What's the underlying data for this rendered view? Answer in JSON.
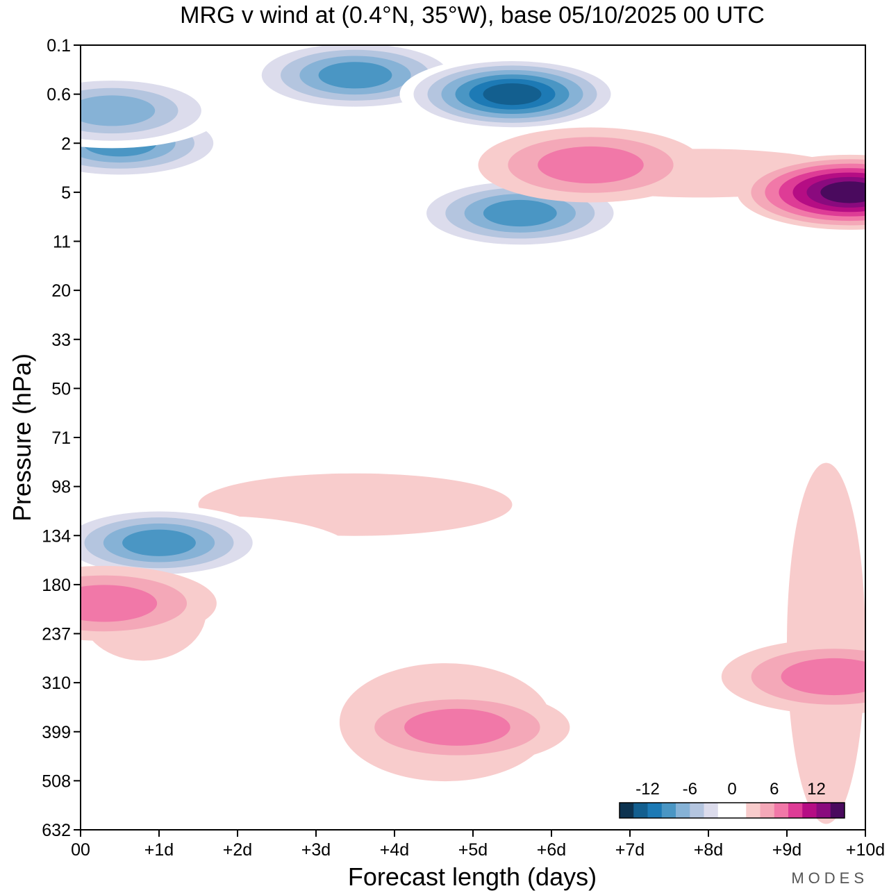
{
  "chart_data": {
    "type": "heatmap",
    "title": "MRG v wind at (0.4°N, 35°W),  base 05/10/2025  00 UTC",
    "xlabel": "Forecast length (days)",
    "ylabel": "Pressure (hPa)",
    "xlim": [
      0,
      10
    ],
    "y_scale": "log",
    "ylim": [
      632,
      0.1
    ],
    "x_ticks": [
      {
        "value": 0,
        "label": "00"
      },
      {
        "value": 1,
        "label": "+1d"
      },
      {
        "value": 2,
        "label": "+2d"
      },
      {
        "value": 3,
        "label": "+3d"
      },
      {
        "value": 4,
        "label": "+4d"
      },
      {
        "value": 5,
        "label": "+5d"
      },
      {
        "value": 6,
        "label": "+6d"
      },
      {
        "value": 7,
        "label": "+7d"
      },
      {
        "value": 8,
        "label": "+8d"
      },
      {
        "value": 9,
        "label": "+9d"
      },
      {
        "value": 10,
        "label": "+10d"
      }
    ],
    "y_ticks": [
      "0.1",
      "0.6",
      "2",
      "5",
      "11",
      "20",
      "33",
      "50",
      "71",
      "98",
      "134",
      "180",
      "237",
      "310",
      "399",
      "508",
      "632"
    ],
    "colorbar": {
      "labels": [
        {
          "value": -12,
          "text": "-12"
        },
        {
          "value": -6,
          "text": "-6"
        },
        {
          "value": 0,
          "text": "0"
        },
        {
          "value": 6,
          "text": "6"
        },
        {
          "value": 12,
          "text": "12"
        }
      ],
      "colors": [
        "#0d3350",
        "#135f8f",
        "#1d7ab5",
        "#4a96c4",
        "#86b2d6",
        "#b4c5df",
        "#dcdcec",
        "#ffffff",
        "#ffffff",
        "#f8cccc",
        "#f4a8b8",
        "#f178a8",
        "#de3c96",
        "#b50d84",
        "#8a0a7e",
        "#4a0a5e"
      ]
    },
    "features": [
      {
        "day": 0.5,
        "pressure": 2,
        "value": -10,
        "kind": "min"
      },
      {
        "day": 0.4,
        "pressure": 0.9,
        "value": -8,
        "kind": "min"
      },
      {
        "day": 3.5,
        "pressure": 0.3,
        "value": -10,
        "kind": "min"
      },
      {
        "day": 5.5,
        "pressure": 0.6,
        "value": -14,
        "kind": "min"
      },
      {
        "day": 5.6,
        "pressure": 7,
        "value": -9,
        "kind": "min"
      },
      {
        "day": 9.8,
        "pressure": 5,
        "value": 14,
        "kind": "max"
      },
      {
        "day": 6.5,
        "pressure": 3,
        "value": 6,
        "kind": "max"
      },
      {
        "day": 1.0,
        "pressure": 140,
        "value": -9,
        "kind": "min"
      },
      {
        "day": 0.3,
        "pressure": 200,
        "value": 6,
        "kind": "max"
      },
      {
        "day": 4.8,
        "pressure": 390,
        "value": 6,
        "kind": "max"
      },
      {
        "day": 9.6,
        "pressure": 300,
        "value": 6,
        "kind": "max"
      }
    ]
  },
  "branding": {
    "name": "MODES"
  }
}
